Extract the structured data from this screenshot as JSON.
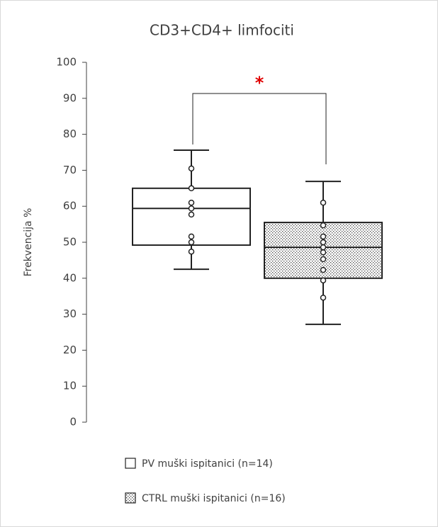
{
  "chart_data": {
    "type": "box",
    "title": "CD3+CD4+ limfociti",
    "y_label": "Frekvencija %",
    "ylim": [
      0,
      100
    ],
    "yticks": [
      0,
      10,
      20,
      30,
      40,
      50,
      60,
      70,
      80,
      90,
      100
    ],
    "annotation": "*",
    "annotation_color": "#e00000",
    "series": [
      {
        "name": "PV muški ispitanici (n=14)",
        "color": "#ffffff",
        "pattern": "none",
        "min": 42.5,
        "q1": 49.2,
        "median": 59.4,
        "q3": 65,
        "max": 75.6,
        "points": [
          70.5,
          65,
          61,
          59.4,
          57.7,
          51.6,
          50,
          47.4
        ]
      },
      {
        "name": "CTRL muški ispitanici (n=16)",
        "color": "#ffffff",
        "pattern": "dots",
        "min": 27.2,
        "q1": 40,
        "median": 48.6,
        "q3": 55.5,
        "max": 66.9,
        "points": [
          61,
          54.7,
          51.6,
          50,
          48.6,
          47.2,
          45.3,
          42.3,
          39.4,
          34.6
        ]
      }
    ]
  }
}
